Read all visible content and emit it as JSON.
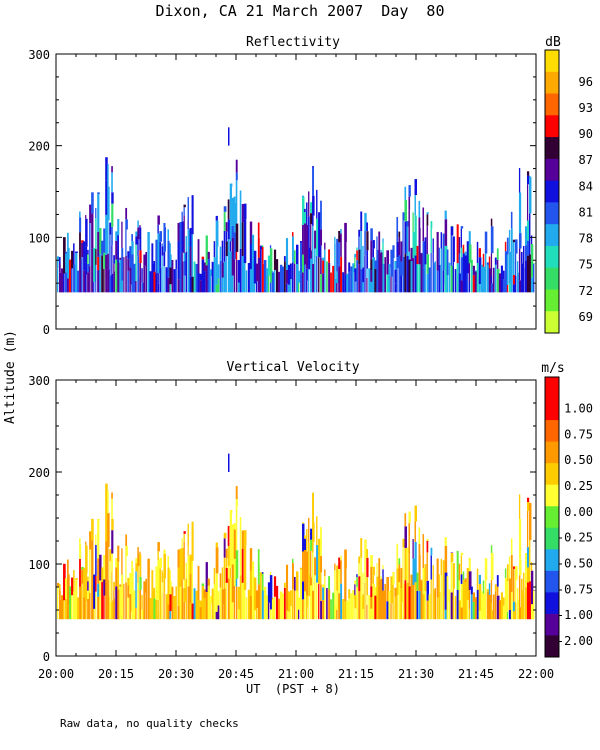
{
  "chart_data": [
    {
      "type": "heatmap",
      "title": "Reflectivity",
      "ylabel": "Altitude (m)",
      "ylim": [
        0,
        300
      ],
      "yticks": [
        0,
        100,
        200,
        300
      ],
      "colorbar_unit": "dB",
      "colorbar_labels": [
        "69",
        "72",
        "75",
        "78",
        "81",
        "84",
        "87",
        "90",
        "93",
        "96"
      ],
      "colorbar_colors": [
        "#ccff33",
        "#66ee33",
        "#33dd66",
        "#22ddbb",
        "#22aaee",
        "#2255ee",
        "#1111dd",
        "#550099",
        "#330033",
        "#ff0000",
        "#ff6600",
        "#ffaa00",
        "#ffdd00"
      ],
      "dominant_colors": [
        "#1111dd",
        "#2255ee",
        "#22aaee",
        "#550099"
      ],
      "rare_colors": [
        "#330033",
        "#ff0000",
        "#22ddbb",
        "#33dd66"
      ],
      "echo_base_m": 40,
      "echo_top_profile_m": [
        75,
        80,
        120,
        110,
        120,
        90,
        130,
        120,
        140,
        155,
        165,
        170,
        140,
        120,
        110,
        100,
        100,
        100,
        110,
        105,
        100,
        95,
        110,
        120,
        125,
        130,
        135,
        110,
        100,
        100,
        110,
        120,
        140,
        160,
        165,
        150,
        120,
        110,
        100,
        90,
        80,
        80,
        80,
        80,
        100,
        110,
        120,
        160,
        165,
        145,
        120,
        100,
        95,
        110,
        120,
        110,
        100,
        110,
        120,
        115,
        110,
        100,
        100,
        100,
        100,
        110,
        130,
        155,
        150,
        130,
        110,
        100,
        100,
        100,
        110,
        110,
        100,
        100,
        100,
        100,
        95,
        90,
        100,
        110,
        105,
        100,
        115,
        130,
        150,
        160,
        140,
        120
      ]
    },
    {
      "type": "heatmap",
      "title": "Vertical Velocity",
      "ylabel": "Altitude (m)",
      "ylim": [
        0,
        300
      ],
      "yticks": [
        0,
        100,
        200,
        300
      ],
      "colorbar_unit": "m/s",
      "colorbar_labels": [
        "-2.00",
        "-1.00",
        "-0.75",
        "-0.50",
        "-0.25",
        "0.00",
        "0.25",
        "0.50",
        "0.75",
        "1.00"
      ],
      "colorbar_colors": [
        "#330033",
        "#550099",
        "#1111dd",
        "#2255ee",
        "#22aaee",
        "#33dd66",
        "#66ee33",
        "#ffff33",
        "#ffcc00",
        "#ff9900",
        "#ff6600",
        "#ff0000",
        "#ff0000"
      ],
      "dominant_colors": [
        "#ffcc00",
        "#ffff33",
        "#ff9900"
      ],
      "rare_colors": [
        "#ff0000",
        "#66ee33",
        "#22aaee",
        "#1111dd",
        "#550099"
      ],
      "echo_base_m": 40,
      "echo_top_profile_m": [
        75,
        80,
        120,
        110,
        120,
        90,
        130,
        120,
        140,
        155,
        165,
        170,
        140,
        120,
        110,
        100,
        100,
        100,
        110,
        105,
        100,
        95,
        110,
        120,
        125,
        130,
        135,
        110,
        100,
        100,
        110,
        120,
        140,
        160,
        165,
        150,
        120,
        110,
        100,
        90,
        80,
        80,
        80,
        80,
        100,
        110,
        120,
        160,
        165,
        145,
        120,
        100,
        95,
        110,
        120,
        110,
        100,
        110,
        120,
        115,
        110,
        100,
        100,
        100,
        100,
        110,
        130,
        155,
        150,
        130,
        110,
        100,
        100,
        100,
        110,
        110,
        100,
        100,
        100,
        100,
        95,
        90,
        100,
        110,
        105,
        100,
        115,
        130,
        150,
        160,
        140,
        120
      ]
    }
  ],
  "figure": {
    "title": "Dixon, CA 21 March 2007  Day  80",
    "xlabel": "UT  (PST + 8)",
    "ylabel": "Altitude (m)",
    "xticks": [
      "20:00",
      "20:15",
      "20:30",
      "20:45",
      "21:00",
      "21:15",
      "21:30",
      "21:45",
      "22:00"
    ],
    "footnote": "Raw data, no quality checks"
  }
}
